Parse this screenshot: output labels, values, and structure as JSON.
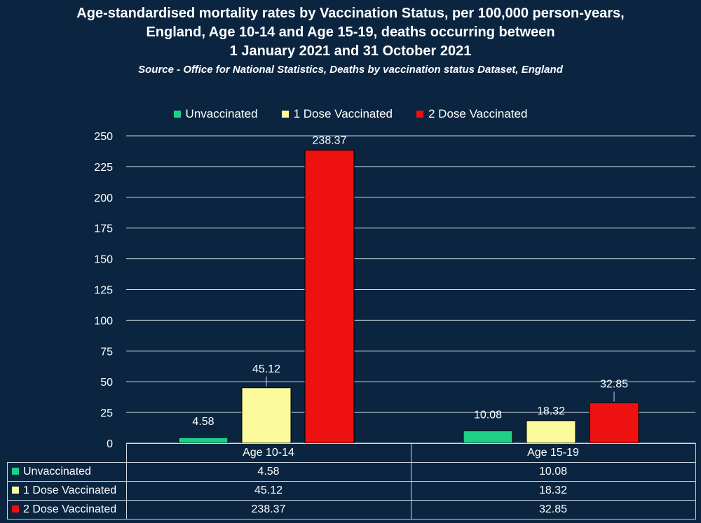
{
  "title_lines": [
    "Age-standardised mortality rates by Vaccination Status, per 100,000 person-years,",
    "England, Age 10-14 and Age 15-19, deaths occurring between",
    "1 January 2021 and 31 October 2021"
  ],
  "subtitle": "Source - Office for National Statistics, Deaths by vaccination status Dataset, England",
  "colors": {
    "background": "#0b2540",
    "unvaccinated": "#1fcf8a",
    "one_dose": "#fbfb9e",
    "two_dose": "#ee1111",
    "grid": "#cfd8e0"
  },
  "chart_data": {
    "type": "bar",
    "title": "Age-standardised mortality rates by Vaccination Status, per 100,000 person-years, England, Age 10-14 and Age 15-19, deaths occurring between 1 January 2021 and 31 October 2021",
    "subtitle": "Source - Office for National Statistics, Deaths by vaccination status Dataset, England",
    "categories": [
      "Age 10-14",
      "Age 15-19"
    ],
    "series": [
      {
        "name": "Unvaccinated",
        "values": [
          4.58,
          10.08
        ],
        "labels": [
          "4.58",
          "10.08"
        ]
      },
      {
        "name": "1 Dose Vaccinated",
        "values": [
          45.12,
          18.32
        ],
        "labels": [
          "45.12",
          "18.32"
        ]
      },
      {
        "name": "2 Dose Vaccinated",
        "values": [
          238.37,
          32.85
        ],
        "labels": [
          "238.37",
          "32.85"
        ]
      }
    ],
    "ylim": [
      0,
      250
    ],
    "yticks": [
      "0",
      "25",
      "50",
      "75",
      "100",
      "125",
      "150",
      "175",
      "200",
      "225",
      "250"
    ],
    "grid": true,
    "legend": "top",
    "data_table": true
  }
}
